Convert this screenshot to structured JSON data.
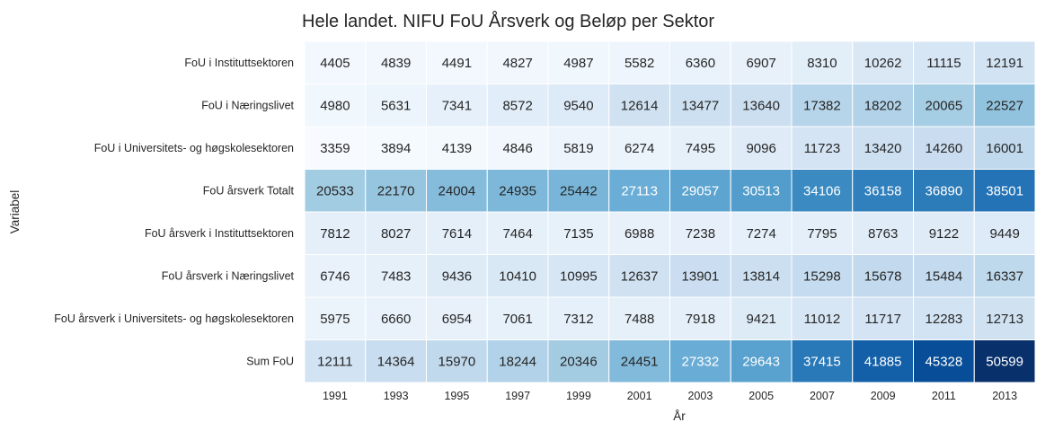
{
  "chart_data": {
    "type": "heatmap",
    "title": "Hele landet. NIFU FoU Årsverk og Beløp per Sektor",
    "xlabel": "År",
    "ylabel": "Variabel",
    "x_categories": [
      "1991",
      "1993",
      "1995",
      "1997",
      "1999",
      "2001",
      "2003",
      "2005",
      "2007",
      "2009",
      "2011",
      "2013"
    ],
    "y_categories": [
      "FoU i Instituttsektoren",
      "FoU i Næringslivet",
      "FoU i Universitets- og høgskolesektoren",
      "FoU årsverk Totalt",
      "FoU årsverk i Instituttsektoren",
      "FoU årsverk i Næringslivet",
      "FoU årsverk i Universitets- og høgskolesektoren",
      "Sum FoU"
    ],
    "values": [
      [
        4405,
        4839,
        4491,
        4827,
        4987,
        5582,
        6360,
        6907,
        8310,
        10262,
        11115,
        12191
      ],
      [
        4980,
        5631,
        7341,
        8572,
        9540,
        12614,
        13477,
        13640,
        17382,
        18202,
        20065,
        22527
      ],
      [
        3359,
        3894,
        4139,
        4846,
        5819,
        6274,
        7495,
        9096,
        11723,
        13420,
        14260,
        16001
      ],
      [
        20533,
        22170,
        24004,
        24935,
        25442,
        27113,
        29057,
        30513,
        34106,
        36158,
        36890,
        38501
      ],
      [
        7812,
        8027,
        7614,
        7464,
        7135,
        6988,
        7238,
        7274,
        7795,
        8763,
        9122,
        9449
      ],
      [
        6746,
        7483,
        9436,
        10410,
        10995,
        12637,
        13901,
        13814,
        15298,
        15678,
        15484,
        16337
      ],
      [
        5975,
        6660,
        6954,
        7061,
        7312,
        7488,
        7918,
        9421,
        11012,
        11717,
        12283,
        12713
      ],
      [
        12111,
        14364,
        15970,
        18244,
        20346,
        24451,
        27332,
        29643,
        37415,
        41885,
        45328,
        50599
      ]
    ],
    "colormap": "Blues",
    "annotated": true,
    "colorbar": false
  }
}
